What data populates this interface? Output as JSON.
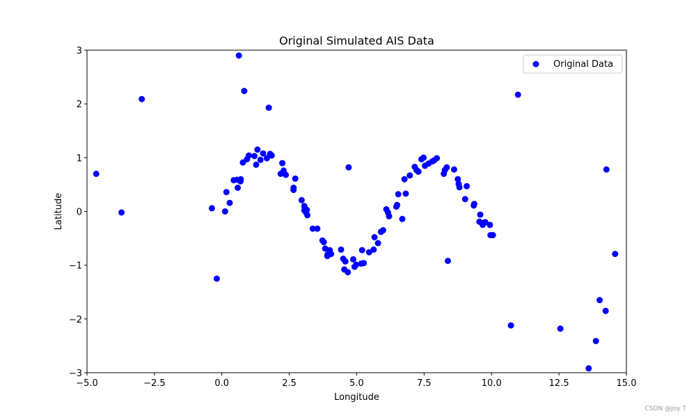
{
  "chart_data": {
    "type": "scatter",
    "title": "Original Simulated AIS Data",
    "xlabel": "Longitude",
    "ylabel": "Latitude",
    "xlim": [
      -5.0,
      15.0
    ],
    "ylim": [
      -3,
      3
    ],
    "x_ticks": [
      "−5.0",
      "−2.5",
      "0.0",
      "2.5",
      "5.0",
      "7.5",
      "10.0",
      "12.5",
      "15.0"
    ],
    "y_ticks": [
      "−3",
      "−2",
      "−1",
      "0",
      "1",
      "2",
      "3"
    ],
    "x_tick_values": [
      -5.0,
      -2.5,
      0.0,
      2.5,
      5.0,
      7.5,
      10.0,
      12.5,
      15.0
    ],
    "y_tick_values": [
      -3,
      -2,
      -1,
      0,
      1,
      2,
      3
    ],
    "grid": false,
    "legend_position": "top-right",
    "series": [
      {
        "name": "Original Data",
        "color": "#0000ff",
        "marker": "circle",
        "points": [
          [
            -4.66,
            0.7
          ],
          [
            -3.72,
            -0.02
          ],
          [
            -2.97,
            2.09
          ],
          [
            -0.37,
            0.06
          ],
          [
            -0.19,
            -1.25
          ],
          [
            0.12,
            0.0
          ],
          [
            0.17,
            0.36
          ],
          [
            0.29,
            0.16
          ],
          [
            0.44,
            0.58
          ],
          [
            0.55,
            0.59
          ],
          [
            0.59,
            0.44
          ],
          [
            0.63,
            2.9
          ],
          [
            0.69,
            0.56
          ],
          [
            0.7,
            0.6
          ],
          [
            0.78,
            0.91
          ],
          [
            0.83,
            2.24
          ],
          [
            0.93,
            0.97
          ],
          [
            1.0,
            1.04
          ],
          [
            1.21,
            1.03
          ],
          [
            1.27,
            0.87
          ],
          [
            1.32,
            1.15
          ],
          [
            1.43,
            0.96
          ],
          [
            1.53,
            1.08
          ],
          [
            1.67,
            0.99
          ],
          [
            1.74,
            1.93
          ],
          [
            1.79,
            1.07
          ],
          [
            1.85,
            1.04
          ],
          [
            2.18,
            0.7
          ],
          [
            2.24,
            0.9
          ],
          [
            2.29,
            0.76
          ],
          [
            2.37,
            0.68
          ],
          [
            2.66,
            0.44
          ],
          [
            2.66,
            0.4
          ],
          [
            2.72,
            0.61
          ],
          [
            2.96,
            0.21
          ],
          [
            3.06,
            0.02
          ],
          [
            3.06,
            0.1
          ],
          [
            3.12,
            -0.02
          ],
          [
            3.15,
            0.03
          ],
          [
            3.17,
            -0.07
          ],
          [
            3.37,
            -0.32
          ],
          [
            3.54,
            -0.32
          ],
          [
            3.73,
            -0.54
          ],
          [
            3.78,
            -0.57
          ],
          [
            3.83,
            -0.69
          ],
          [
            3.91,
            -0.83
          ],
          [
            3.92,
            -0.8
          ],
          [
            4.0,
            -0.72
          ],
          [
            4.05,
            -0.79
          ],
          [
            4.42,
            -0.71
          ],
          [
            4.5,
            -0.88
          ],
          [
            4.54,
            -1.08
          ],
          [
            4.58,
            -0.93
          ],
          [
            4.67,
            -1.13
          ],
          [
            4.7,
            0.82
          ],
          [
            4.87,
            -0.89
          ],
          [
            4.92,
            -1.03
          ],
          [
            4.98,
            -0.99
          ],
          [
            5.17,
            -0.97
          ],
          [
            5.2,
            -0.72
          ],
          [
            5.26,
            -0.96
          ],
          [
            5.46,
            -0.76
          ],
          [
            5.63,
            -0.71
          ],
          [
            5.66,
            -0.48
          ],
          [
            5.79,
            -0.59
          ],
          [
            5.9,
            -0.38
          ],
          [
            5.98,
            -0.35
          ],
          [
            6.1,
            0.04
          ],
          [
            6.16,
            -0.02
          ],
          [
            6.2,
            -0.09
          ],
          [
            6.47,
            0.09
          ],
          [
            6.5,
            0.12
          ],
          [
            6.54,
            0.32
          ],
          [
            6.69,
            -0.14
          ],
          [
            6.77,
            0.6
          ],
          [
            6.82,
            0.33
          ],
          [
            6.97,
            0.67
          ],
          [
            7.15,
            0.83
          ],
          [
            7.22,
            0.77
          ],
          [
            7.29,
            0.74
          ],
          [
            7.4,
            0.97
          ],
          [
            7.48,
            1.0
          ],
          [
            7.53,
            0.85
          ],
          [
            7.66,
            0.89
          ],
          [
            7.8,
            0.93
          ],
          [
            7.87,
            0.95
          ],
          [
            7.97,
            0.99
          ],
          [
            8.23,
            0.7
          ],
          [
            8.27,
            0.77
          ],
          [
            8.34,
            0.82
          ],
          [
            8.38,
            -0.92
          ],
          [
            8.61,
            0.78
          ],
          [
            8.75,
            0.6
          ],
          [
            8.78,
            0.51
          ],
          [
            8.81,
            0.45
          ],
          [
            9.02,
            0.23
          ],
          [
            9.08,
            0.47
          ],
          [
            9.34,
            0.11
          ],
          [
            9.36,
            0.14
          ],
          [
            9.55,
            -0.19
          ],
          [
            9.58,
            -0.06
          ],
          [
            9.67,
            -0.25
          ],
          [
            9.7,
            -0.21
          ],
          [
            9.77,
            -0.2
          ],
          [
            9.94,
            -0.25
          ],
          [
            9.96,
            -0.44
          ],
          [
            10.05,
            -0.44
          ],
          [
            10.72,
            -2.12
          ],
          [
            10.98,
            2.17
          ],
          [
            12.55,
            -2.18
          ],
          [
            13.6,
            -2.92
          ],
          [
            13.87,
            -2.41
          ],
          [
            14.01,
            -1.65
          ],
          [
            14.23,
            -1.85
          ],
          [
            14.26,
            0.78
          ],
          [
            14.58,
            -0.79
          ]
        ]
      }
    ]
  },
  "watermark": "CSDN @Joy T"
}
